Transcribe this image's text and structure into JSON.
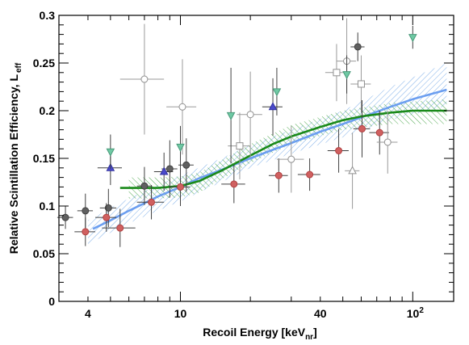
{
  "chart_data": {
    "type": "scatter",
    "xlabel": "Recoil Energy [keV",
    "xlabel_sub": "nr",
    "xlabel_suffix": "]",
    "ylabel": "Relative Scintillation Efficiency, L",
    "ylabel_sub": "eff",
    "xscale": "log",
    "xlim": [
      3,
      150
    ],
    "ylim": [
      0,
      0.3
    ],
    "x_ticks": [
      {
        "value": 4,
        "label": "4"
      },
      {
        "value": 10,
        "label": "10"
      },
      {
        "value": 40,
        "label": "40"
      },
      {
        "value": 100,
        "label": "10",
        "sup": "2"
      }
    ],
    "y_ticks": [
      {
        "value": 0,
        "label": "0"
      },
      {
        "value": 0.05,
        "label": "0.05"
      },
      {
        "value": 0.1,
        "label": "0.1"
      },
      {
        "value": 0.15,
        "label": "0.15"
      },
      {
        "value": 0.2,
        "label": "0.2"
      },
      {
        "value": 0.25,
        "label": "0.25"
      },
      {
        "value": 0.3,
        "label": "0.3"
      }
    ],
    "grid": false,
    "bands": [
      {
        "color": "#6fa6e6",
        "hatch": "diag-right",
        "x": [
          4,
          5,
          6,
          8,
          10,
          15,
          20,
          30,
          50,
          80,
          140
        ],
        "upper": [
          0.085,
          0.098,
          0.108,
          0.122,
          0.132,
          0.15,
          0.164,
          0.18,
          0.2,
          0.225,
          0.25
        ],
        "lower": [
          0.06,
          0.072,
          0.082,
          0.095,
          0.105,
          0.125,
          0.14,
          0.155,
          0.172,
          0.19,
          0.205
        ]
      },
      {
        "color": "#3c9e3c",
        "hatch": "diag-left",
        "x": [
          6,
          8,
          10,
          12,
          15,
          20,
          30,
          50,
          80,
          140
        ],
        "upper": [
          0.13,
          0.13,
          0.131,
          0.135,
          0.148,
          0.165,
          0.185,
          0.2,
          0.208,
          0.212
        ],
        "lower": [
          0.108,
          0.108,
          0.109,
          0.114,
          0.128,
          0.145,
          0.165,
          0.18,
          0.186,
          0.186
        ]
      }
    ],
    "curves": [
      {
        "color": "#6b9ef0",
        "x": [
          4.2,
          5,
          6,
          7,
          8,
          10,
          12,
          15,
          20,
          25,
          30,
          40,
          50,
          60,
          80,
          100,
          140
        ],
        "y": [
          0.076,
          0.085,
          0.095,
          0.103,
          0.11,
          0.12,
          0.129,
          0.138,
          0.15,
          0.159,
          0.166,
          0.178,
          0.186,
          0.193,
          0.204,
          0.212,
          0.222
        ]
      },
      {
        "color": "#1a8a1a",
        "x": [
          5.5,
          6,
          8,
          10,
          12,
          15,
          20,
          25,
          30,
          40,
          50,
          60,
          80,
          100,
          140
        ],
        "y": [
          0.119,
          0.119,
          0.119,
          0.121,
          0.126,
          0.137,
          0.153,
          0.165,
          0.173,
          0.183,
          0.19,
          0.194,
          0.198,
          0.2,
          0.2
        ]
      }
    ],
    "series": [
      {
        "marker": "circle",
        "fill": "#606060",
        "stroke": "#404040",
        "points": [
          {
            "x": 3.2,
            "y": 0.088,
            "xerr": 0.25,
            "yerr": 0.012
          },
          {
            "x": 3.9,
            "y": 0.095,
            "xerr": 0.3,
            "yerr": 0.018
          },
          {
            "x": 4.9,
            "y": 0.098,
            "xerr": 0.4,
            "yerr": 0.02
          },
          {
            "x": 7.0,
            "y": 0.121,
            "xerr": 0.5,
            "yerr": 0.02
          },
          {
            "x": 9.0,
            "y": 0.139,
            "xerr": 0.7,
            "yerr": 0.03
          },
          {
            "x": 10.6,
            "y": 0.143,
            "xerr": 0.8,
            "yerr": 0.028
          },
          {
            "x": 58.0,
            "y": 0.267,
            "xerr": 4.0,
            "yerr": 0.015
          }
        ]
      },
      {
        "marker": "circle",
        "fill": "#d06060",
        "stroke": "#b04040",
        "points": [
          {
            "x": 3.9,
            "y": 0.073,
            "xerr": 0.4,
            "yerr": 0.015
          },
          {
            "x": 4.8,
            "y": 0.088,
            "xerr": 0.5,
            "yerr": 0.015
          },
          {
            "x": 5.5,
            "y": 0.077,
            "xerr": 0.9,
            "yerr": 0.02
          },
          {
            "x": 7.5,
            "y": 0.104,
            "xerr": 1.0,
            "yerr": 0.018
          },
          {
            "x": 10.0,
            "y": 0.12,
            "xerr": 1.0,
            "yerr": 0.02
          },
          {
            "x": 17.0,
            "y": 0.123,
            "xerr": 2.0,
            "yerr": 0.02
          },
          {
            "x": 26.5,
            "y": 0.132,
            "xerr": 2.5,
            "yerr": 0.018
          },
          {
            "x": 36.0,
            "y": 0.133,
            "xerr": 4.0,
            "yerr": 0.017
          },
          {
            "x": 48.0,
            "y": 0.158,
            "xerr": 5.0,
            "yerr": 0.023
          },
          {
            "x": 60.5,
            "y": 0.181,
            "xerr": 5.0,
            "yerr": 0.03
          },
          {
            "x": 72.0,
            "y": 0.177,
            "xerr": 7.0,
            "yerr": 0.023
          }
        ]
      },
      {
        "marker": "open-circle",
        "fill": "#ffffff",
        "stroke": "#909090",
        "points": [
          {
            "x": 7.0,
            "y": 0.233,
            "xerr": 1.5,
            "yerr": 0.058
          },
          {
            "x": 10.2,
            "y": 0.204,
            "xerr": 1.5,
            "yerr": 0.05
          },
          {
            "x": 20.0,
            "y": 0.196,
            "xerr": 2.5,
            "yerr": 0.045
          },
          {
            "x": 30.0,
            "y": 0.149,
            "xerr": 4.0,
            "yerr": 0.035
          },
          {
            "x": 52.0,
            "y": 0.252,
            "xerr": 5.0,
            "yerr": 0.045
          },
          {
            "x": 78.0,
            "y": 0.167,
            "xerr": 8.0,
            "yerr": 0.033
          }
        ]
      },
      {
        "marker": "open-square",
        "fill": "#ffffff",
        "stroke": "#909090",
        "points": [
          {
            "x": 18.0,
            "y": 0.163,
            "xerr": 2.0,
            "yerr": 0.035
          },
          {
            "x": 47.0,
            "y": 0.24,
            "xerr": 5.0,
            "yerr": 0.03
          },
          {
            "x": 60.0,
            "y": 0.228,
            "xerr": 6.0,
            "yerr": 0.03
          }
        ]
      },
      {
        "marker": "open-triangle",
        "fill": "#ffffff",
        "stroke": "#909090",
        "points": [
          {
            "x": 55.0,
            "y": 0.137,
            "xerr": 4.0,
            "yerr": 0.04
          }
        ]
      },
      {
        "marker": "triangle-up",
        "fill": "#4a4acc",
        "stroke": "#3030a0",
        "points": [
          {
            "x": 5.0,
            "y": 0.14,
            "xerr": 0.6,
            "yerr": 0.018
          },
          {
            "x": 8.5,
            "y": 0.136,
            "xerr": 0.8,
            "yerr": 0.02
          },
          {
            "x": 25.0,
            "y": 0.204,
            "xerr": 2.5,
            "yerr": 0.03
          }
        ]
      },
      {
        "marker": "triangle-down",
        "fill": "#6fc9a4",
        "stroke": "#4a9a7a",
        "points": [
          {
            "x": 5.0,
            "y": 0.157,
            "xerr": 0.0,
            "yerr": 0.018
          },
          {
            "x": 10.0,
            "y": 0.162,
            "xerr": 0.0,
            "yerr": 0.022
          },
          {
            "x": 16.5,
            "y": 0.195,
            "xerr": 0.0,
            "yerr": 0.05
          },
          {
            "x": 26.0,
            "y": 0.22,
            "xerr": 0.0,
            "yerr": 0.025
          },
          {
            "x": 52.0,
            "y": 0.238,
            "xerr": 0.0,
            "yerr": 0.02
          },
          {
            "x": 100.0,
            "y": 0.277,
            "xerr": 0.0,
            "yerr": 0.012
          }
        ]
      }
    ]
  }
}
